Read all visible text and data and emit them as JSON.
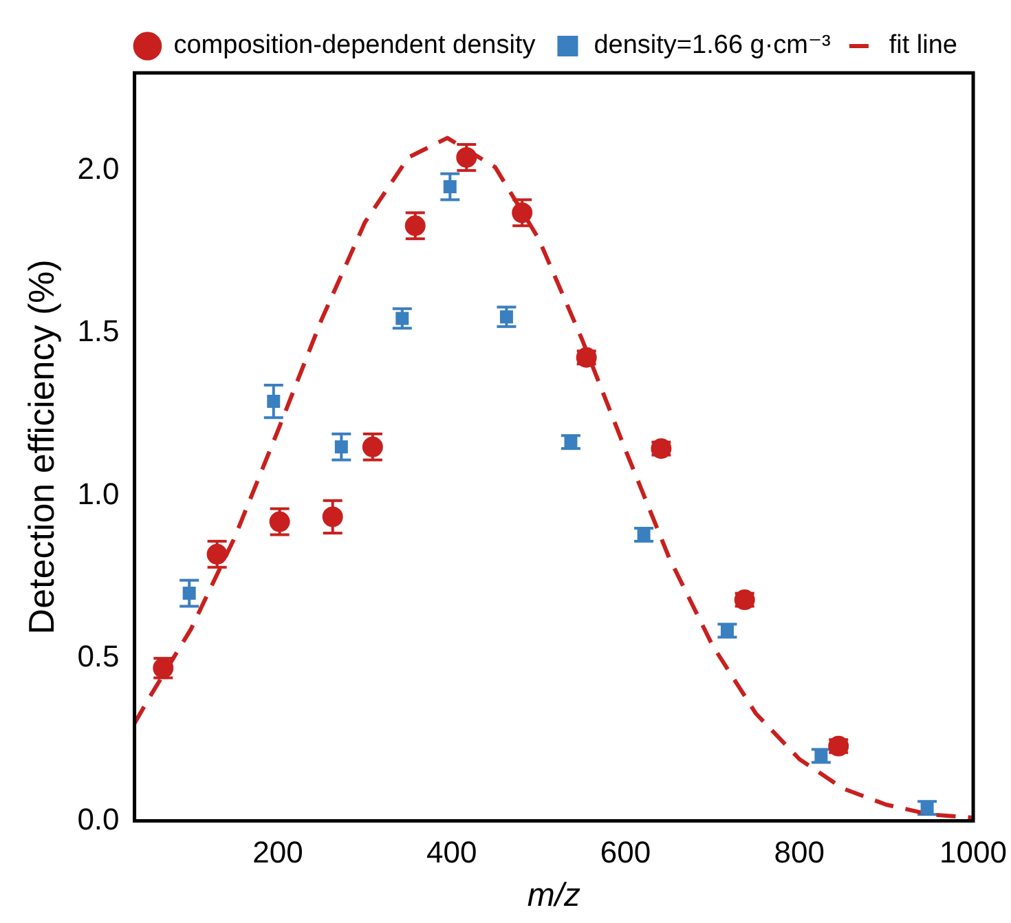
{
  "chart_data": {
    "type": "scatter",
    "xlabel": "m/z",
    "ylabel": "Detection efficiency (%)",
    "xlim": [
      35,
      1000
    ],
    "xticks": [
      200,
      400,
      600,
      800,
      1000
    ],
    "ylim": [
      0,
      2.3
    ],
    "yticks": [
      {
        "value": 0,
        "label": "0.0"
      },
      0.5,
      {
        "value": 1,
        "label": "1.0"
      },
      1.5,
      {
        "value": 2,
        "label": "2.0"
      }
    ],
    "grid": false,
    "legend": "top",
    "series": [
      {
        "name": "composition-dependent density",
        "type": "scatter",
        "marker": "circle",
        "color": "#c8201e",
        "x": [
          68,
          130,
          202,
          263,
          309,
          358,
          417,
          481,
          555,
          641,
          737,
          845
        ],
        "values": [
          0.47,
          0.82,
          0.92,
          0.935,
          1.15,
          1.83,
          2.04,
          1.87,
          1.425,
          1.145,
          0.68,
          0.23
        ],
        "errors": [
          0.03,
          0.04,
          0.04,
          0.05,
          0.04,
          0.04,
          0.04,
          0.04,
          0.02,
          0.02,
          0.02,
          0.02
        ]
      },
      {
        "name": "density=1.66 g·cm⁻³",
        "type": "scatter",
        "marker": "square",
        "color": "#3a7fc0",
        "x": [
          98,
          195,
          273,
          343,
          398,
          463,
          537,
          621,
          717,
          825,
          947
        ],
        "values": [
          0.7,
          1.29,
          1.15,
          1.545,
          1.95,
          1.55,
          1.165,
          0.88,
          0.585,
          0.2,
          0.04
        ],
        "errors": [
          0.04,
          0.05,
          0.04,
          0.03,
          0.04,
          0.03,
          0.02,
          0.02,
          0.02,
          0.02,
          0.02
        ]
      },
      {
        "name": "fit line",
        "type": "line",
        "marker": "none",
        "line_style": "dashed",
        "color": "#c8201e",
        "x": [
          35,
          50,
          100,
          150,
          200,
          250,
          300,
          350,
          395,
          450,
          500,
          550,
          600,
          650,
          700,
          750,
          800,
          850,
          900,
          950,
          1000
        ],
        "values": [
          0.3,
          0.37,
          0.59,
          0.87,
          1.2,
          1.54,
          1.84,
          2.04,
          2.1,
          2.01,
          1.79,
          1.48,
          1.14,
          0.81,
          0.54,
          0.33,
          0.19,
          0.1,
          0.05,
          0.02,
          0.01
        ]
      }
    ]
  }
}
